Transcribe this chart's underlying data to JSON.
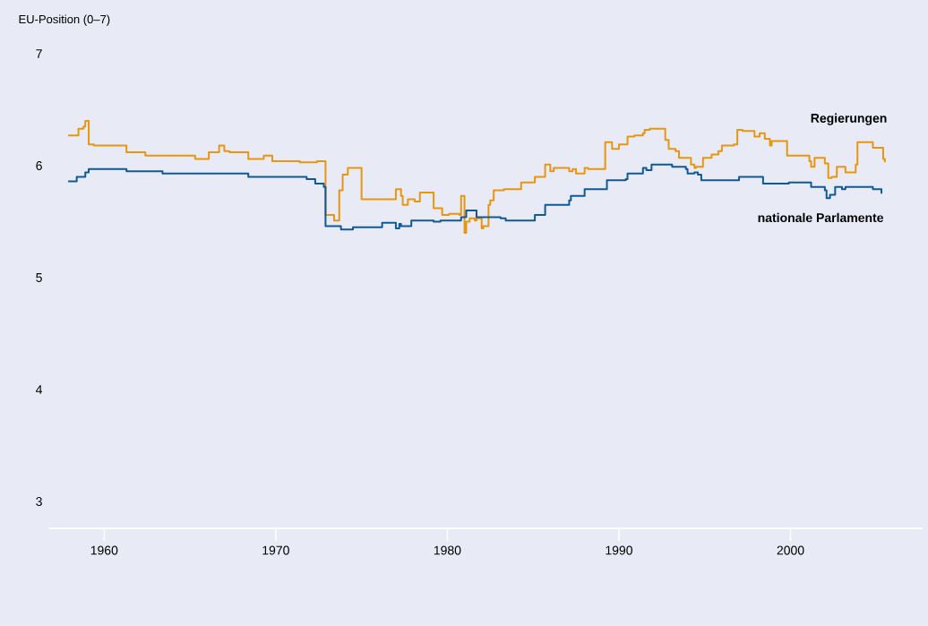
{
  "chart_data": {
    "type": "step",
    "ylabel": "EU-Position (0–7)",
    "xlim": [
      1956.8,
      2007.7
    ],
    "ylim": [
      2.76,
      7.44
    ],
    "xticks": [
      1960,
      1970,
      1980,
      1990,
      2000
    ],
    "yticks": [
      3,
      4,
      5,
      6,
      7
    ],
    "series": [
      {
        "name": "Regierungen",
        "color": "#e8960f",
        "x": [
          1957.9,
          1958.5,
          1958.8,
          1958.9,
          1959.1,
          1959.4,
          1961.3,
          1962.4,
          1965.3,
          1966.1,
          1966.7,
          1967.0,
          1967.3,
          1968.4,
          1969.3,
          1969.8,
          1971.4,
          1972.4,
          1972.9,
          1973.4,
          1973.7,
          1973.9,
          1974.2,
          1975.0,
          1977.0,
          1977.3,
          1977.4,
          1977.7,
          1978.1,
          1978.4,
          1979.2,
          1979.7,
          1980.1,
          1980.7,
          1980.8,
          1981.0,
          1981.1,
          1981.3,
          1981.6,
          1981.7,
          1982.0,
          1982.1,
          1982.4,
          1982.5,
          1982.7,
          1983.3,
          1984.3,
          1985.1,
          1985.7,
          1986.0,
          1986.2,
          1987.1,
          1987.3,
          1987.5,
          1988.0,
          1988.2,
          1989.2,
          1989.6,
          1990.0,
          1990.5,
          1990.9,
          1991.4,
          1991.5,
          1991.8,
          1992.7,
          1992.9,
          1993.3,
          1993.5,
          1994.2,
          1994.4,
          1994.5,
          1994.9,
          1995.4,
          1995.8,
          1996.0,
          1996.7,
          1996.9,
          1997.2,
          1997.9,
          1998.2,
          1998.5,
          1998.8,
          1998.9,
          1999.4,
          1999.8,
          2001.1,
          2001.2,
          2001.4,
          2002.0,
          2002.2,
          2002.4,
          2002.7,
          2003.2,
          2003.8,
          2003.9,
          2004.8,
          2005.4,
          2005.5
        ],
        "values": [
          6.27,
          6.33,
          6.35,
          6.4,
          6.19,
          6.18,
          6.12,
          6.09,
          6.06,
          6.12,
          6.18,
          6.13,
          6.12,
          6.06,
          6.09,
          6.04,
          6.03,
          6.04,
          5.56,
          5.51,
          5.78,
          5.92,
          5.98,
          5.7,
          5.79,
          5.73,
          5.65,
          5.7,
          5.68,
          5.76,
          5.62,
          5.56,
          5.57,
          5.56,
          5.73,
          5.4,
          5.5,
          5.53,
          5.51,
          5.53,
          5.44,
          5.46,
          5.65,
          5.69,
          5.78,
          5.79,
          5.85,
          5.9,
          6.01,
          5.95,
          5.98,
          5.95,
          5.97,
          5.93,
          5.98,
          5.97,
          6.21,
          6.15,
          6.19,
          6.26,
          6.27,
          6.29,
          6.32,
          6.33,
          6.23,
          6.15,
          6.13,
          6.07,
          6.01,
          5.98,
          5.99,
          6.07,
          6.1,
          6.13,
          6.18,
          6.19,
          6.32,
          6.31,
          6.26,
          6.29,
          6.24,
          6.18,
          6.22,
          6.22,
          6.09,
          6.04,
          5.99,
          6.07,
          6.02,
          5.89,
          5.9,
          5.99,
          5.94,
          6.01,
          6.21,
          6.16,
          6.06,
          6.03
        ]
      },
      {
        "name": "nationale Parlamente",
        "color": "#0f5a96",
        "x": [
          1957.9,
          1958.4,
          1958.9,
          1959.1,
          1961.3,
          1963.4,
          1968.4,
          1971.8,
          1972.3,
          1972.8,
          1972.9,
          1973.8,
          1974.5,
          1976.2,
          1977.0,
          1977.2,
          1977.3,
          1977.9,
          1979.2,
          1979.6,
          1980.8,
          1981.1,
          1981.7,
          1983.1,
          1983.4,
          1985.1,
          1985.7,
          1987.1,
          1987.2,
          1988.0,
          1989.3,
          1990.4,
          1990.5,
          1991.4,
          1991.6,
          1991.9,
          1993.1,
          1993.9,
          1994.0,
          1994.4,
          1994.6,
          1994.8,
          1997.0,
          1998.4,
          1999.9,
          2001.2,
          2002.0,
          2002.1,
          2002.3,
          2002.6,
          2003.0,
          2003.2,
          2004.8,
          2005.3
        ],
        "values": [
          5.86,
          5.9,
          5.94,
          5.97,
          5.95,
          5.93,
          5.9,
          5.88,
          5.84,
          5.81,
          5.46,
          5.43,
          5.45,
          5.49,
          5.44,
          5.48,
          5.46,
          5.51,
          5.5,
          5.51,
          5.54,
          5.6,
          5.54,
          5.53,
          5.51,
          5.56,
          5.65,
          5.69,
          5.73,
          5.79,
          5.87,
          5.88,
          5.93,
          5.98,
          5.96,
          6.01,
          5.99,
          5.97,
          5.93,
          5.94,
          5.92,
          5.87,
          5.9,
          5.84,
          5.85,
          5.81,
          5.78,
          5.71,
          5.74,
          5.81,
          5.79,
          5.81,
          5.79,
          5.75
        ]
      }
    ]
  }
}
